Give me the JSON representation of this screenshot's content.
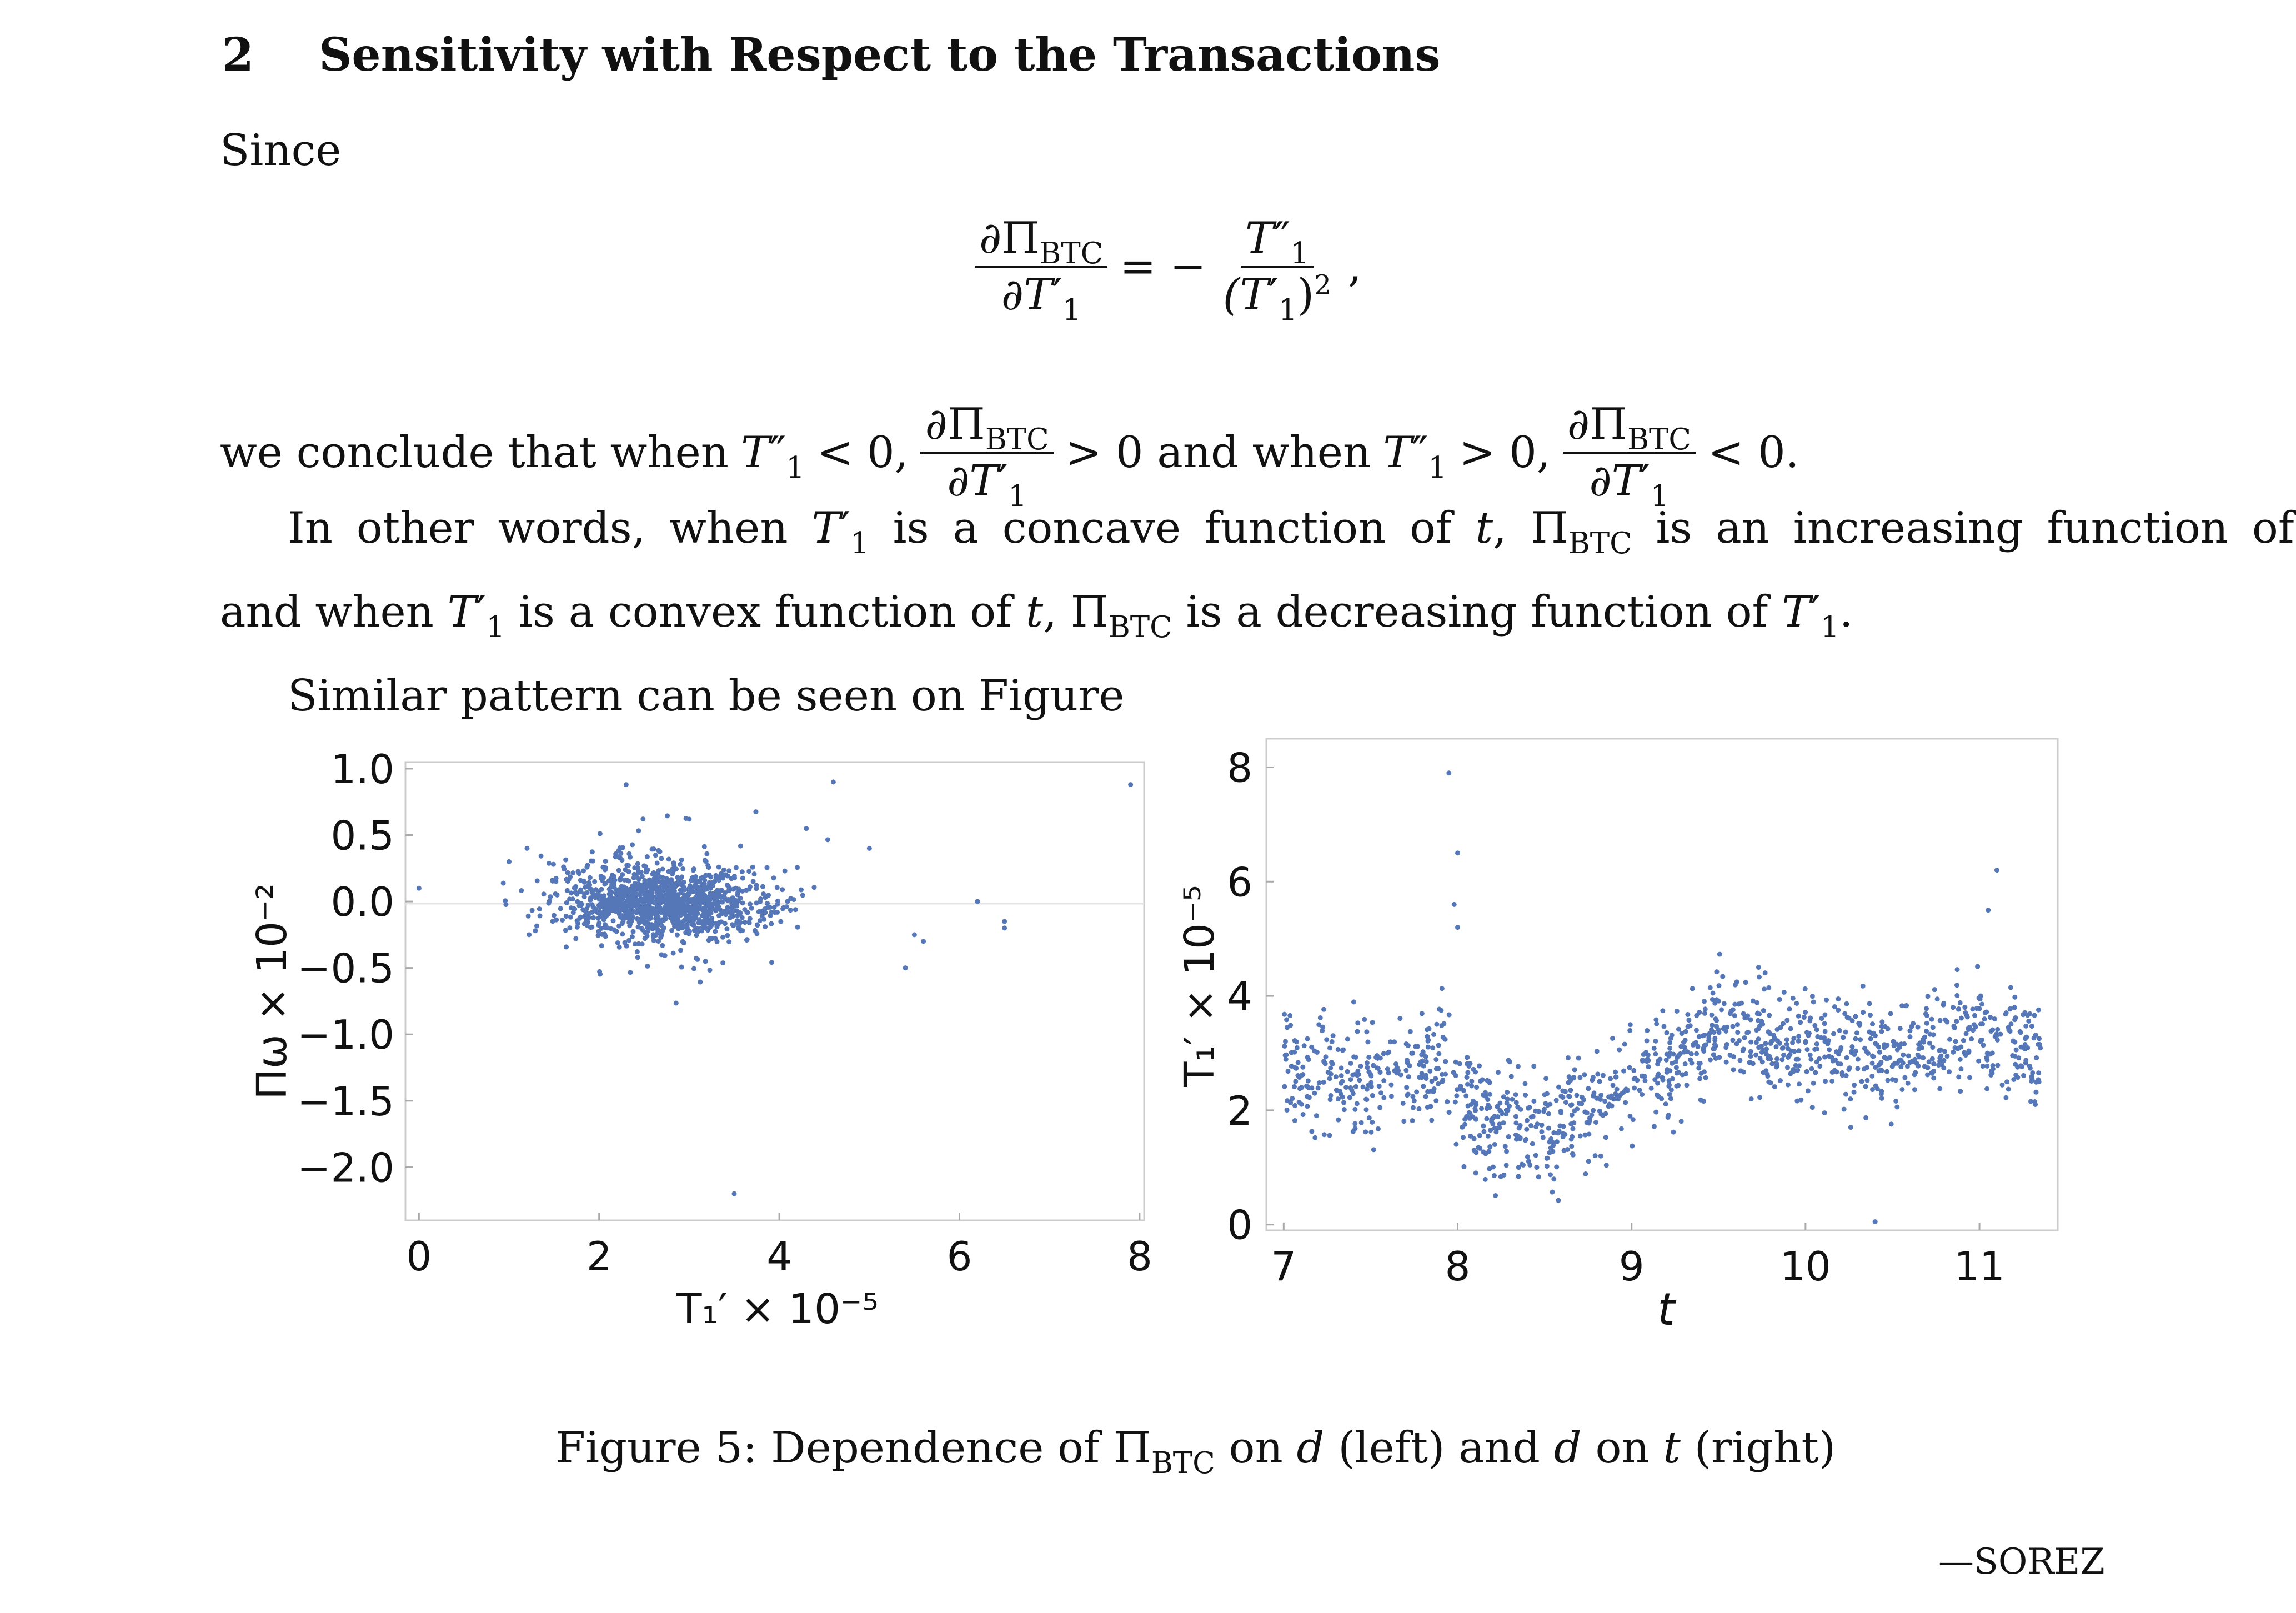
{
  "section": {
    "number": "2",
    "title": "Sensitivity with Respect to the Transactions"
  },
  "text": {
    "since": "Since",
    "display_eq": {
      "lhs_num": "∂Π",
      "lhs_num_sub": "BTC",
      "lhs_den": "∂T",
      "lhs_den_sub": "1",
      "lhs_den_prime": "′",
      "equals": "= −",
      "rhs_num": "T",
      "rhs_num_sub": "1",
      "rhs_num_prime": "″",
      "rhs_den": "(T",
      "rhs_den_sub": "1",
      "rhs_den_prime": "′",
      "rhs_den_close": ")",
      "rhs_den_pow": "2",
      "comma": ","
    },
    "conclude_a": "we conclude that when",
    "conclude_b": "< 0,",
    "conclude_c": "> 0 and when",
    "conclude_d": "> 0,",
    "conclude_e": "< 0.",
    "para2_line1_a": "In other words, when",
    "para2_line1_b": "is a concave function of",
    "para2_line1_c": ",",
    "para2_line1_d": "is an increasing function of",
    "para2_line1_e": ",",
    "para2_line2_a": "and when",
    "para2_line2_b": "is a convex function of",
    "para2_line2_c": ",",
    "para2_line2_d": "is a decreasing function of",
    "para2_line2_e": ".",
    "t_var": "t",
    "T_sym": "T",
    "T_sub": "1",
    "prime": "′",
    "dprime": "″",
    "Pi": "Π",
    "BTC": "BTC",
    "partial_Pi": "∂Π",
    "partial_T": "∂T",
    "para3": "Similar pattern can be seen on Figure"
  },
  "caption": {
    "prefix": "Figure 5: Dependence of",
    "pi": "Π",
    "pi_sub": "BTC",
    "on": "on",
    "d1": "d",
    "left": "(left) and",
    "d2": "d",
    "on2": "on",
    "t": "t",
    "right": "(right)"
  },
  "footer": {
    "signature": "—SOREZ"
  },
  "chart_data": [
    {
      "type": "scatter",
      "title": "",
      "xlabel": "T₁′ × 10⁻⁵",
      "ylabel": "Πω × 10⁻²",
      "xlim": [
        -0.15,
        8.05
      ],
      "ylim": [
        -2.4,
        1.05
      ],
      "xticks": [
        0,
        2,
        4,
        6,
        8
      ],
      "yticks": [
        1.0,
        0.5,
        0.0,
        -0.5,
        -1.0,
        -1.5,
        -2.0
      ],
      "ytick_labels": [
        "1.0",
        "0.5",
        "0.0",
        "−0.5",
        "−1.0",
        "−1.5",
        "−2.0"
      ],
      "color": "#5577b8",
      "cluster": {
        "x_center": 2.7,
        "x_spread": 0.75,
        "y_center": 0.0,
        "y_spread": 0.12,
        "n": 1300
      },
      "outliers": [
        [
          0.0,
          0.1
        ],
        [
          2.3,
          0.88
        ],
        [
          4.6,
          0.9
        ],
        [
          7.9,
          0.88
        ],
        [
          3.5,
          -2.2
        ],
        [
          5.0,
          0.4
        ],
        [
          5.5,
          -0.25
        ],
        [
          5.6,
          -0.3
        ],
        [
          6.2,
          0.0
        ],
        [
          6.5,
          -0.15
        ],
        [
          6.5,
          -0.2
        ],
        [
          5.4,
          -0.5
        ],
        [
          4.3,
          0.55
        ],
        [
          3.0,
          0.62
        ],
        [
          1.0,
          0.3
        ],
        [
          1.2,
          0.4
        ]
      ]
    },
    {
      "type": "scatter",
      "title": "",
      "xlabel": "t",
      "ylabel": "T₁′ × 10⁻⁵",
      "xlim": [
        6.9,
        11.45
      ],
      "ylim": [
        -0.1,
        8.5
      ],
      "xticks": [
        7,
        8,
        9,
        10,
        11
      ],
      "yticks": [
        0,
        2,
        4,
        6,
        8
      ],
      "color": "#5577b8",
      "trend": [
        [
          7.0,
          2.7
        ],
        [
          7.5,
          2.5
        ],
        [
          7.9,
          2.8
        ],
        [
          8.1,
          1.9
        ],
        [
          8.5,
          1.7
        ],
        [
          8.9,
          2.3
        ],
        [
          9.2,
          2.8
        ],
        [
          9.5,
          3.5
        ],
        [
          10.0,
          3.0
        ],
        [
          10.5,
          2.8
        ],
        [
          11.0,
          3.3
        ],
        [
          11.35,
          2.9
        ]
      ],
      "spikes": [
        [
          7.95,
          7.9
        ],
        [
          8.0,
          6.5
        ],
        [
          7.98,
          5.6
        ],
        [
          8.0,
          5.2
        ],
        [
          10.4,
          0.05
        ],
        [
          11.1,
          6.2
        ],
        [
          11.05,
          5.5
        ]
      ],
      "n": 1300
    }
  ]
}
